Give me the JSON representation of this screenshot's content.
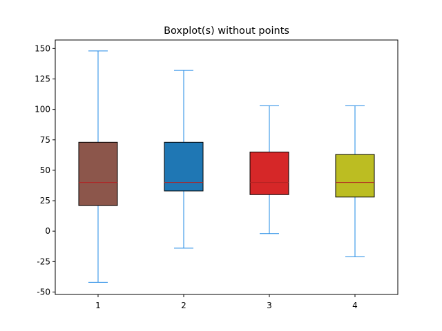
{
  "chart_data": {
    "type": "boxplot",
    "title": "Boxplot(s) without points",
    "xlabel": "",
    "ylabel": "",
    "categories": [
      "1",
      "2",
      "3",
      "4"
    ],
    "ylim": [
      -52,
      157
    ],
    "yticks": [
      -50,
      -25,
      0,
      25,
      50,
      75,
      100,
      125,
      150
    ],
    "grid": false,
    "whisker_color": "#1e88e5",
    "median_color": "#b22222",
    "boxes": [
      {
        "label": "1",
        "whisker_low": -42,
        "q1": 21,
        "median": 40,
        "q3": 73,
        "whisker_high": 148,
        "color": "#8c564b"
      },
      {
        "label": "2",
        "whisker_low": -14,
        "q1": 33,
        "median": 40,
        "q3": 73,
        "whisker_high": 132,
        "color": "#1f77b4"
      },
      {
        "label": "3",
        "whisker_low": -2,
        "q1": 30,
        "median": 40,
        "q3": 65,
        "whisker_high": 103,
        "color": "#d62728"
      },
      {
        "label": "4",
        "whisker_low": -21,
        "q1": 28,
        "median": 40,
        "q3": 63,
        "whisker_high": 103,
        "color": "#bcbd22"
      }
    ]
  }
}
